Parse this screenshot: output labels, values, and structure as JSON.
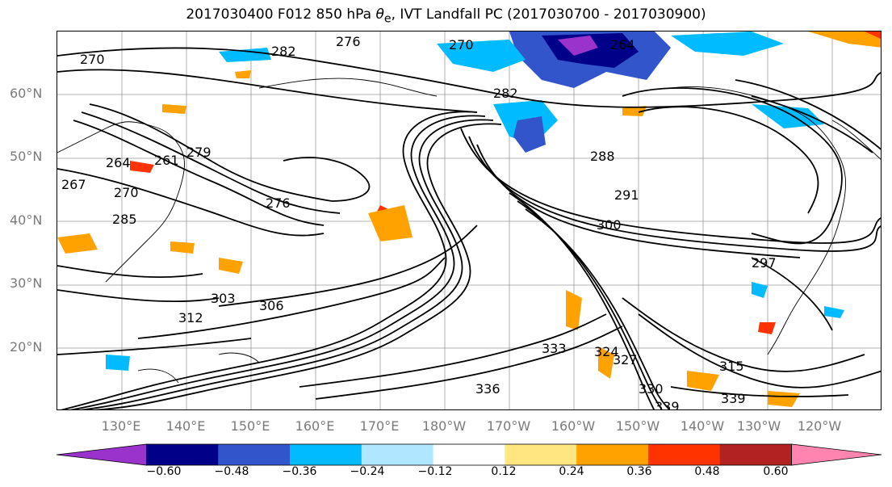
{
  "title_main": "2017030400 F012 850 hPa ",
  "title_symbol": "θ",
  "title_sub": "e",
  "title_rest": ", IVT Landfall PC (2017030700 - 2017030900)",
  "lat_labels": [
    "60°N",
    "50°N",
    "40°N",
    "30°N",
    "20°N"
  ],
  "lon_labels": [
    "130°E",
    "140°E",
    "150°E",
    "160°E",
    "170°E",
    "180°W",
    "170°W",
    "160°W",
    "150°W",
    "140°W",
    "130°W",
    "120°W"
  ],
  "contour_labels": [
    "270",
    "276",
    "282",
    "270",
    "264",
    "261",
    "264",
    "282",
    "288",
    "291",
    "276",
    "279",
    "267",
    "270",
    "285",
    "300",
    "303",
    "306",
    "312",
    "333",
    "324",
    "327",
    "336",
    "339",
    "339",
    "330",
    "315",
    "297"
  ],
  "colorbar": {
    "ticks": [
      "−0.60",
      "−0.48",
      "−0.36",
      "−0.24",
      "−0.12",
      "0.12",
      "0.24",
      "0.36",
      "0.48",
      "0.60"
    ],
    "colors": [
      "#9933cc",
      "#000088",
      "#3355cc",
      "#00bbff",
      "#b0e6ff",
      "#ffffff",
      "#ffe680",
      "#ffa200",
      "#ff3300",
      "#b22222",
      "#ff85b0"
    ]
  }
}
